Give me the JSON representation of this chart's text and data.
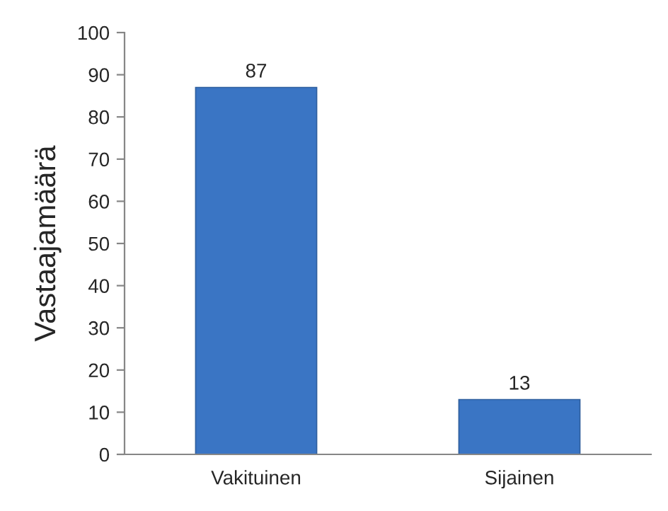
{
  "chart_data": {
    "type": "bar",
    "ylabel": "Vastaajamäärä",
    "categories": [
      "Vakituinen",
      "Sijainen"
    ],
    "values": [
      87,
      13
    ],
    "color": "#3a75c4",
    "ylim": [
      0,
      100
    ],
    "yticks": [
      0,
      10,
      20,
      30,
      40,
      50,
      60,
      70,
      80,
      90,
      100
    ],
    "grid": false,
    "legend": false,
    "data_labels": true
  }
}
